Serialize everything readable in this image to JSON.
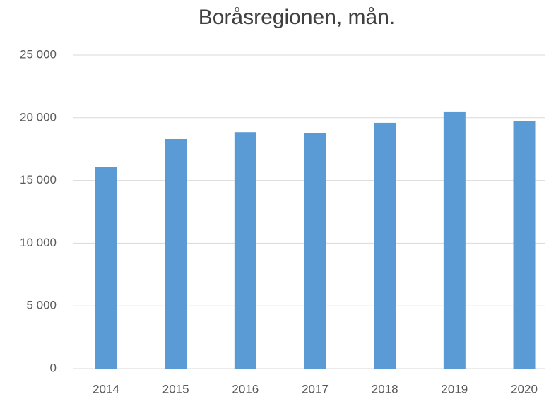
{
  "chart_data": {
    "type": "bar",
    "title": "Boråsregionen, mån.",
    "categories": [
      "2014",
      "2015",
      "2016",
      "2017",
      "2018",
      "2019",
      "2020"
    ],
    "values": [
      16050,
      18300,
      18850,
      18800,
      19600,
      20500,
      19750
    ],
    "color": "#5b9bd5",
    "ylim": [
      0,
      25000
    ],
    "yticks": [
      0,
      {
        "value": 5000,
        "label": "5 000"
      },
      {
        "value": 10000,
        "label": "10 000"
      },
      {
        "value": 15000,
        "label": "15 000"
      },
      {
        "value": 20000,
        "label": "20 000"
      },
      {
        "value": 25000,
        "label": "25 000"
      }
    ],
    "grid": true
  }
}
